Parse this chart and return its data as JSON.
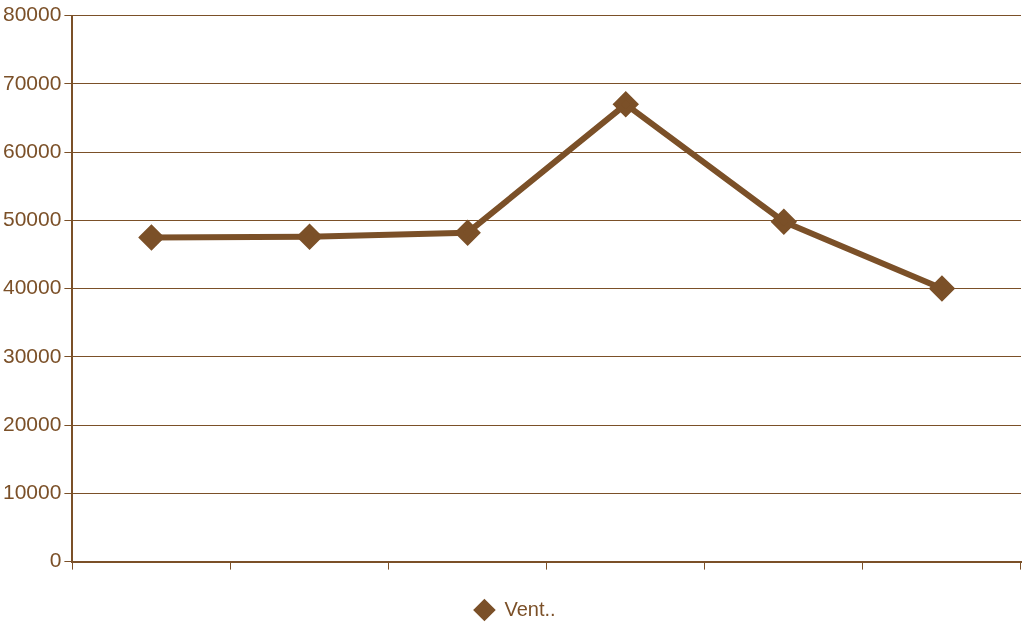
{
  "chart_data": {
    "type": "line",
    "categories": [
      null,
      null,
      null,
      null,
      null,
      null
    ],
    "series": [
      {
        "name": "Vent..",
        "color": "#7b5028",
        "values": [
          47500,
          47600,
          48200,
          67000,
          49800,
          40000
        ]
      }
    ],
    "ylim": [
      0,
      80000
    ],
    "yticks": [
      0,
      10000,
      20000,
      30000,
      40000,
      50000,
      60000,
      70000,
      80000
    ],
    "grid": "y",
    "legend": "bottom",
    "marker": "diamond",
    "line_style": "solid"
  }
}
